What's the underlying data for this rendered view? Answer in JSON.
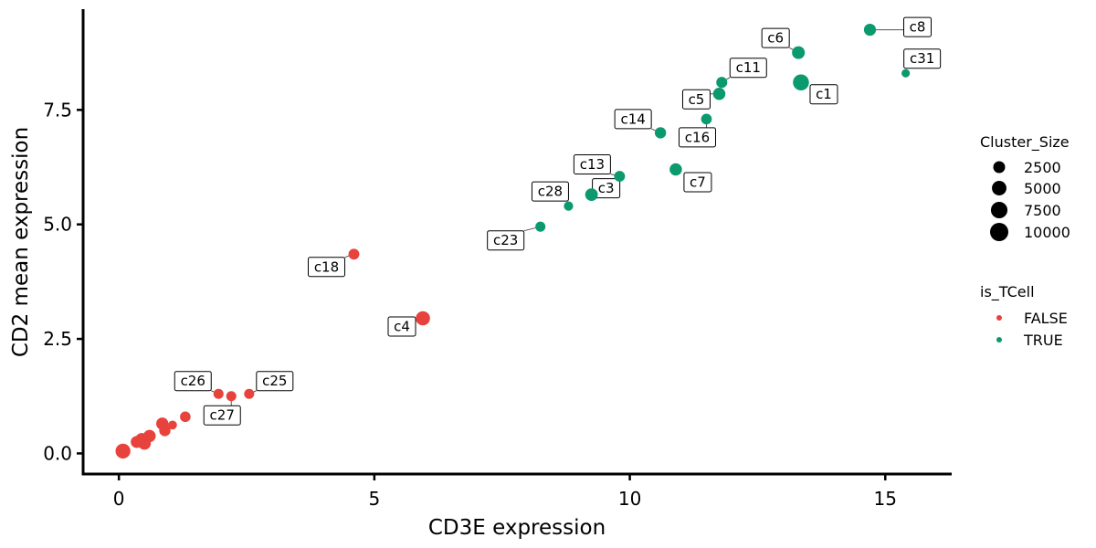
{
  "chart_data": {
    "type": "scatter",
    "xlabel": "CD3E expression",
    "ylabel": "CD2 mean expression",
    "xlim": [
      -0.7,
      16.3
    ],
    "ylim": [
      -0.45,
      9.7
    ],
    "x_ticks": [
      0,
      5,
      10,
      15
    ],
    "x_tick_labels": [
      "0",
      "5",
      "10",
      "15"
    ],
    "y_ticks": [
      0,
      2.5,
      5,
      7.5
    ],
    "y_tick_labels": [
      "0.0",
      "2.5",
      "5.0",
      "7.5"
    ],
    "grid": false,
    "legend_placement": "right",
    "colors": {
      "FALSE": "#E8423C",
      "TRUE": "#0A9A6E"
    },
    "points": [
      {
        "x": 14.7,
        "y": 9.25,
        "size": 2600,
        "is_TCell": "TRUE",
        "label": "c8"
      },
      {
        "x": 13.3,
        "y": 8.75,
        "size": 3300,
        "is_TCell": "TRUE",
        "label": "c6"
      },
      {
        "x": 13.35,
        "y": 8.1,
        "size": 6800,
        "is_TCell": "TRUE",
        "label": "c1"
      },
      {
        "x": 15.4,
        "y": 8.3,
        "size": 500,
        "is_TCell": "TRUE",
        "label": "c31"
      },
      {
        "x": 11.8,
        "y": 8.1,
        "size": 1900,
        "is_TCell": "TRUE",
        "label": "c11"
      },
      {
        "x": 11.75,
        "y": 7.85,
        "size": 2900,
        "is_TCell": "TRUE",
        "label": "c5"
      },
      {
        "x": 11.5,
        "y": 7.3,
        "size": 1700,
        "is_TCell": "TRUE",
        "label": "c16"
      },
      {
        "x": 10.6,
        "y": 7.0,
        "size": 2100,
        "is_TCell": "TRUE",
        "label": "c14"
      },
      {
        "x": 10.9,
        "y": 6.2,
        "size": 2900,
        "is_TCell": "TRUE",
        "label": "c7"
      },
      {
        "x": 9.8,
        "y": 6.05,
        "size": 1800,
        "is_TCell": "TRUE",
        "label": "c13"
      },
      {
        "x": 9.25,
        "y": 5.65,
        "size": 3100,
        "is_TCell": "TRUE",
        "label": "c3"
      },
      {
        "x": 8.8,
        "y": 5.4,
        "size": 900,
        "is_TCell": "TRUE",
        "label": "c28"
      },
      {
        "x": 8.25,
        "y": 4.95,
        "size": 1300,
        "is_TCell": "TRUE",
        "label": "c23"
      },
      {
        "x": 4.6,
        "y": 4.35,
        "size": 1800,
        "is_TCell": "FALSE",
        "label": "c18"
      },
      {
        "x": 5.95,
        "y": 2.95,
        "size": 4700,
        "is_TCell": "FALSE",
        "label": "c4"
      },
      {
        "x": 2.55,
        "y": 1.3,
        "size": 1300,
        "is_TCell": "FALSE",
        "label": "c25"
      },
      {
        "x": 1.95,
        "y": 1.3,
        "size": 1300,
        "is_TCell": "FALSE",
        "label": "c26"
      },
      {
        "x": 2.2,
        "y": 1.25,
        "size": 1300,
        "is_TCell": "FALSE",
        "label": "c27"
      },
      {
        "x": 1.3,
        "y": 0.8,
        "size": 1600,
        "is_TCell": "FALSE",
        "label": ""
      },
      {
        "x": 0.85,
        "y": 0.65,
        "size": 2800,
        "is_TCell": "FALSE",
        "label": ""
      },
      {
        "x": 1.05,
        "y": 0.62,
        "size": 700,
        "is_TCell": "FALSE",
        "label": ""
      },
      {
        "x": 0.9,
        "y": 0.5,
        "size": 2100,
        "is_TCell": "FALSE",
        "label": ""
      },
      {
        "x": 0.6,
        "y": 0.38,
        "size": 2900,
        "is_TCell": "FALSE",
        "label": ""
      },
      {
        "x": 0.45,
        "y": 0.3,
        "size": 3800,
        "is_TCell": "FALSE",
        "label": ""
      },
      {
        "x": 0.35,
        "y": 0.25,
        "size": 2600,
        "is_TCell": "FALSE",
        "label": ""
      },
      {
        "x": 0.5,
        "y": 0.22,
        "size": 3300,
        "is_TCell": "FALSE",
        "label": ""
      },
      {
        "x": 0.08,
        "y": 0.05,
        "size": 5400,
        "is_TCell": "FALSE",
        "label": ""
      }
    ],
    "legend": {
      "size_title": "Cluster_Size",
      "size_entries": [
        {
          "label": "2500",
          "value": 2500
        },
        {
          "label": "5000",
          "value": 5000
        },
        {
          "label": "7500",
          "value": 7500
        },
        {
          "label": "10000",
          "value": 10000
        }
      ],
      "color_title": "is_TCell",
      "color_entries": [
        {
          "label": "FALSE",
          "key": "FALSE"
        },
        {
          "label": "TRUE",
          "key": "TRUE"
        }
      ]
    }
  }
}
